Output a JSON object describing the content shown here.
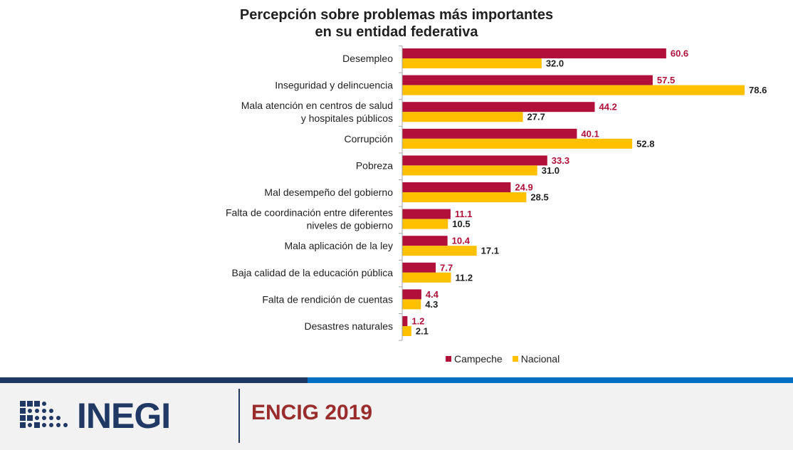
{
  "chart_data": {
    "type": "bar",
    "orientation": "horizontal",
    "title": [
      "Percepción sobre problemas más importantes",
      "en su entidad federativa"
    ],
    "categories": [
      [
        "Desempleo"
      ],
      [
        "Inseguridad y delincuencia"
      ],
      [
        "Mala atención en centros de salud",
        "y hospitales públicos"
      ],
      [
        "Corrupción"
      ],
      [
        "Pobreza"
      ],
      [
        "Mal desempeño del gobierno"
      ],
      [
        "Falta de coordinación entre diferentes",
        "niveles de gobierno"
      ],
      [
        "Mala aplicación de la ley"
      ],
      [
        "Baja calidad de la educación pública"
      ],
      [
        "Falta de rendición de cuentas"
      ],
      [
        "Desastres naturales"
      ]
    ],
    "series": [
      {
        "name": "Campeche",
        "color": "#b0103a",
        "label_color": "#b0103a",
        "values": [
          60.6,
          57.5,
          44.2,
          40.1,
          33.3,
          24.9,
          11.1,
          10.4,
          7.7,
          4.4,
          1.2
        ]
      },
      {
        "name": "Nacional",
        "color": "#ffc000",
        "label_color": "#1f1f1f",
        "values": [
          32.0,
          78.6,
          27.7,
          52.8,
          31.0,
          28.5,
          10.5,
          17.1,
          11.2,
          4.3,
          2.1
        ]
      }
    ],
    "xlim": [
      0,
      100
    ],
    "legend_position": "bottom",
    "grid": false
  },
  "footer": {
    "logo_text": "INEGI",
    "survey": "ENCIG 2019"
  }
}
